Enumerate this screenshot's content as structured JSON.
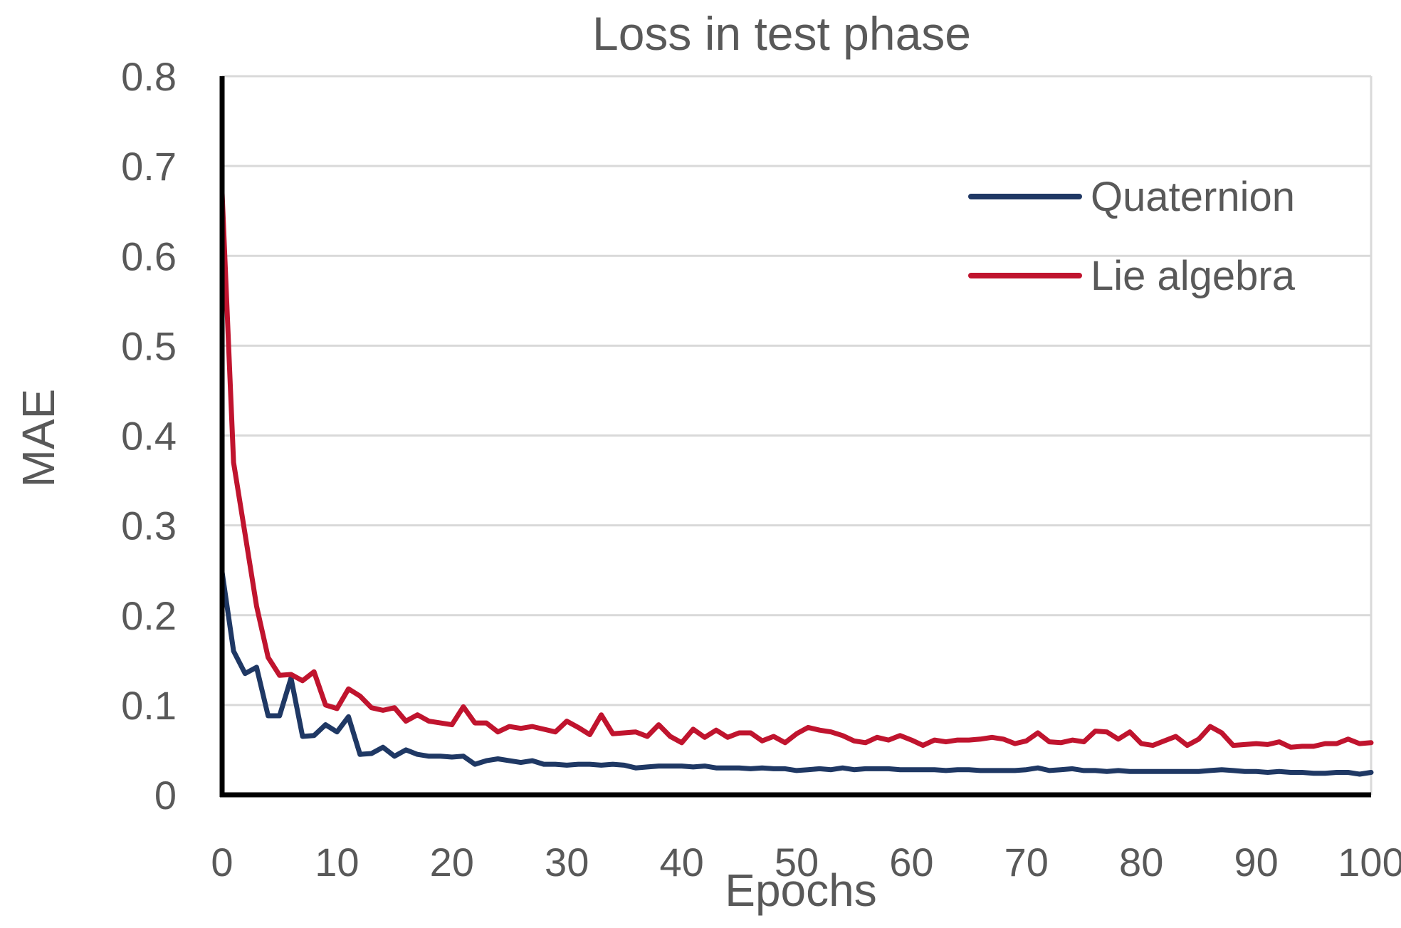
{
  "chart_data": {
    "type": "line",
    "title": "Loss in test phase",
    "xlabel": "Epochs",
    "ylabel": "MAE",
    "xlim": [
      0,
      100
    ],
    "ylim": [
      0,
      0.8
    ],
    "grid": true,
    "legend_position": "top-right",
    "x_ticks": [
      0,
      10,
      20,
      30,
      40,
      50,
      60,
      70,
      80,
      90,
      100
    ],
    "x_tick_labels": [
      "0",
      "10",
      "20",
      "30",
      "40",
      "50",
      "60",
      "70",
      "80",
      "90",
      "100"
    ],
    "y_ticks": [
      0,
      0.1,
      0.2,
      0.3,
      0.4,
      0.5,
      0.6,
      0.7,
      0.8
    ],
    "y_tick_labels": [
      "0",
      "0.1",
      "0.2",
      "0.3",
      "0.4",
      "0.5",
      "0.6",
      "0.7",
      "0.8"
    ],
    "series": [
      {
        "name": "Quaternion",
        "color": "#1f3864",
        "x": [
          0,
          1,
          2,
          3,
          4,
          5,
          6,
          7,
          8,
          9,
          10,
          11,
          12,
          13,
          14,
          15,
          16,
          17,
          18,
          19,
          20,
          21,
          22,
          23,
          24,
          25,
          26,
          27,
          28,
          29,
          30,
          31,
          32,
          33,
          34,
          35,
          36,
          37,
          38,
          39,
          40,
          41,
          42,
          43,
          44,
          45,
          46,
          47,
          48,
          49,
          50,
          51,
          52,
          53,
          54,
          55,
          56,
          57,
          58,
          59,
          60,
          61,
          62,
          63,
          64,
          65,
          66,
          67,
          68,
          69,
          70,
          71,
          72,
          73,
          74,
          75,
          76,
          77,
          78,
          79,
          80,
          81,
          82,
          83,
          84,
          85,
          86,
          87,
          88,
          89,
          90,
          91,
          92,
          93,
          94,
          95,
          96,
          97,
          98,
          99,
          100
        ],
        "values": [
          0.248,
          0.16,
          0.135,
          0.142,
          0.088,
          0.088,
          0.13,
          0.065,
          0.066,
          0.078,
          0.07,
          0.087,
          0.045,
          0.046,
          0.053,
          0.043,
          0.05,
          0.045,
          0.043,
          0.043,
          0.042,
          0.043,
          0.034,
          0.038,
          0.04,
          0.038,
          0.036,
          0.038,
          0.034,
          0.034,
          0.033,
          0.034,
          0.034,
          0.033,
          0.034,
          0.033,
          0.03,
          0.031,
          0.032,
          0.032,
          0.032,
          0.031,
          0.032,
          0.03,
          0.03,
          0.03,
          0.029,
          0.03,
          0.029,
          0.029,
          0.027,
          0.028,
          0.029,
          0.028,
          0.03,
          0.028,
          0.029,
          0.029,
          0.029,
          0.028,
          0.028,
          0.028,
          0.028,
          0.027,
          0.028,
          0.028,
          0.027,
          0.027,
          0.027,
          0.027,
          0.028,
          0.03,
          0.027,
          0.028,
          0.029,
          0.027,
          0.027,
          0.026,
          0.027,
          0.026,
          0.026,
          0.026,
          0.026,
          0.026,
          0.026,
          0.026,
          0.027,
          0.028,
          0.027,
          0.026,
          0.026,
          0.025,
          0.026,
          0.025,
          0.025,
          0.024,
          0.024,
          0.025,
          0.025,
          0.023,
          0.025
        ]
      },
      {
        "name": "Lie algebra",
        "color": "#c0142e",
        "x": [
          0,
          1,
          2,
          3,
          4,
          5,
          6,
          7,
          8,
          9,
          10,
          11,
          12,
          13,
          14,
          15,
          16,
          17,
          18,
          19,
          20,
          21,
          22,
          23,
          24,
          25,
          26,
          27,
          28,
          29,
          30,
          31,
          32,
          33,
          34,
          35,
          36,
          37,
          38,
          39,
          40,
          41,
          42,
          43,
          44,
          45,
          46,
          47,
          48,
          49,
          50,
          51,
          52,
          53,
          54,
          55,
          56,
          57,
          58,
          59,
          60,
          61,
          62,
          63,
          64,
          65,
          66,
          67,
          68,
          69,
          70,
          71,
          72,
          73,
          74,
          75,
          76,
          77,
          78,
          79,
          80,
          81,
          82,
          83,
          84,
          85,
          86,
          87,
          88,
          89,
          90,
          91,
          92,
          93,
          94,
          95,
          96,
          97,
          98,
          99,
          100
        ],
        "values": [
          0.67,
          0.37,
          0.29,
          0.21,
          0.153,
          0.133,
          0.134,
          0.127,
          0.137,
          0.1,
          0.096,
          0.118,
          0.11,
          0.097,
          0.094,
          0.097,
          0.082,
          0.089,
          0.082,
          0.08,
          0.078,
          0.098,
          0.08,
          0.08,
          0.07,
          0.076,
          0.074,
          0.076,
          0.073,
          0.07,
          0.082,
          0.075,
          0.067,
          0.089,
          0.068,
          0.069,
          0.07,
          0.065,
          0.078,
          0.065,
          0.058,
          0.073,
          0.064,
          0.072,
          0.064,
          0.069,
          0.069,
          0.06,
          0.065,
          0.058,
          0.068,
          0.075,
          0.072,
          0.07,
          0.066,
          0.06,
          0.058,
          0.064,
          0.061,
          0.066,
          0.061,
          0.055,
          0.061,
          0.059,
          0.061,
          0.061,
          0.062,
          0.064,
          0.062,
          0.057,
          0.06,
          0.069,
          0.059,
          0.058,
          0.061,
          0.059,
          0.071,
          0.07,
          0.062,
          0.07,
          0.057,
          0.055,
          0.06,
          0.065,
          0.055,
          0.062,
          0.076,
          0.069,
          0.055,
          0.056,
          0.057,
          0.056,
          0.059,
          0.053,
          0.054,
          0.054,
          0.057,
          0.057,
          0.062,
          0.057,
          0.058
        ]
      }
    ]
  }
}
